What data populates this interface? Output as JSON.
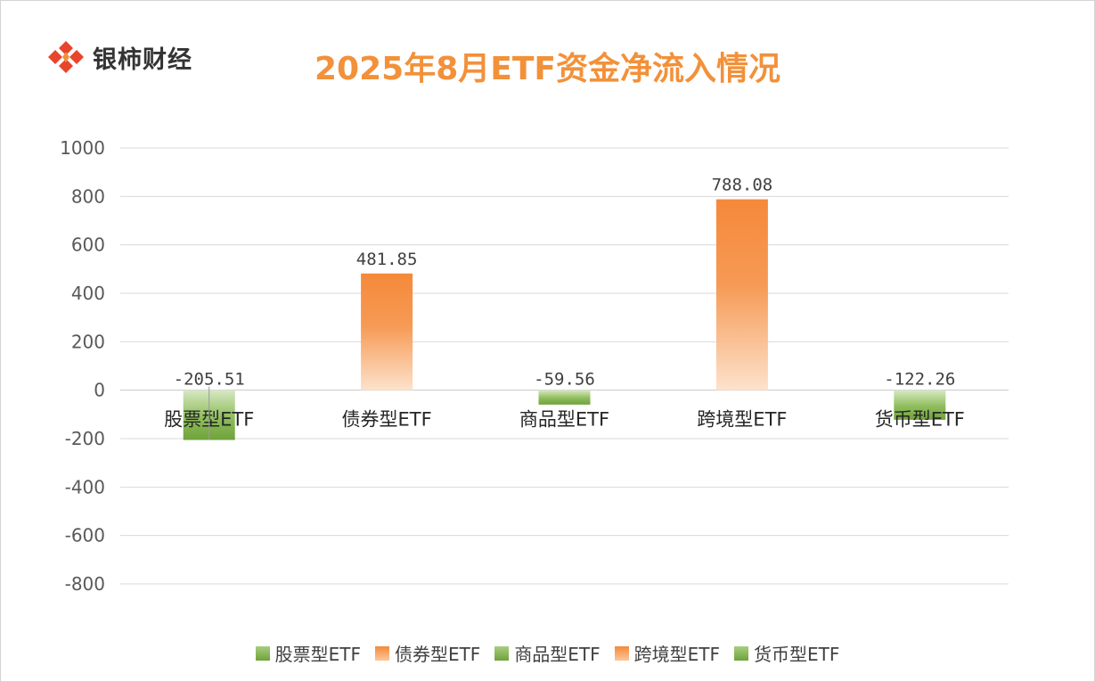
{
  "brand": {
    "name": "银柿财经"
  },
  "chart_data": {
    "type": "bar",
    "title": "2025年8月ETF资金净流入情况",
    "categories": [
      "股票型ETF",
      "债券型ETF",
      "商品型ETF",
      "跨境型ETF",
      "货币型ETF"
    ],
    "values": [
      -205.51,
      481.85,
      -59.56,
      788.08,
      -122.26
    ],
    "data_labels": [
      "-205.51",
      "481.85",
      "-59.56",
      "788.08",
      "-122.26"
    ],
    "bar_colors": [
      "green",
      "orange",
      "green",
      "orange",
      "green"
    ],
    "ylim": [
      -800,
      1000
    ],
    "yticks": [
      1000,
      800,
      600,
      400,
      200,
      0,
      -200,
      -400,
      -600,
      -800
    ],
    "ytick_labels": [
      "1000",
      "800",
      "600",
      "400",
      "200",
      "0",
      "-200",
      "-400",
      "-600",
      "-800"
    ],
    "grid": true,
    "legend": {
      "position": "bottom",
      "entries": [
        {
          "label": "股票型ETF",
          "color": "#7fb048"
        },
        {
          "label": "债券型ETF",
          "color": "#f5893a"
        },
        {
          "label": "商品型ETF",
          "color": "#7fb048"
        },
        {
          "label": "跨境型ETF",
          "color": "#f5893a"
        },
        {
          "label": "货币型ETF",
          "color": "#7fb048"
        }
      ]
    },
    "colors": {
      "orange": "#f5893a",
      "green": "#7fb048",
      "title": "#f2913a"
    }
  }
}
